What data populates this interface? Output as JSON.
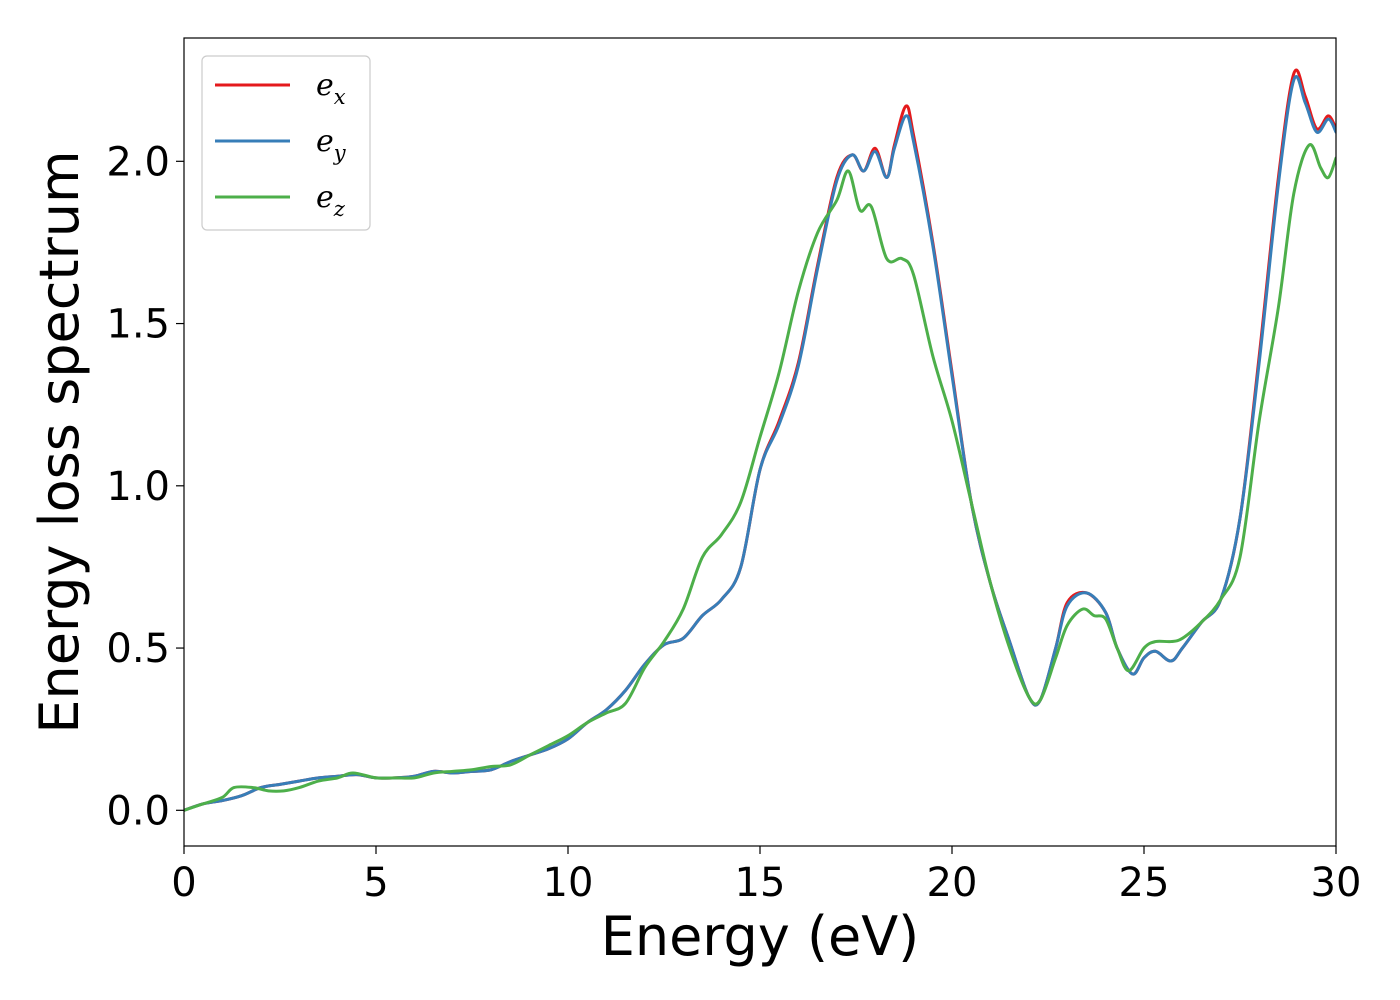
{
  "chart_data": {
    "type": "line",
    "title": "",
    "xlabel": "Energy (eV)",
    "ylabel": "Energy loss spectrum",
    "xlim": [
      0,
      30
    ],
    "ylim": [
      -0.11,
      2.38
    ],
    "xticks": [
      0,
      5,
      10,
      15,
      20,
      25,
      30
    ],
    "xtick_labels": [
      "0",
      "5",
      "10",
      "15",
      "20",
      "25",
      "30"
    ],
    "yticks": [
      0.0,
      0.5,
      1.0,
      1.5,
      2.0
    ],
    "ytick_labels": [
      "0.0",
      "0.5",
      "1.0",
      "1.5",
      "2.0"
    ],
    "grid": false,
    "legend": "top-left",
    "series": [
      {
        "name": "e_x",
        "label_base": "e",
        "label_sub": "x",
        "color": "#e41a1c",
        "x": [
          0,
          0.5,
          1.0,
          1.5,
          2.0,
          2.5,
          3.0,
          3.5,
          4.0,
          4.5,
          5.0,
          5.5,
          6.0,
          6.5,
          7.0,
          7.5,
          8.0,
          8.5,
          9.0,
          9.5,
          10.0,
          10.5,
          11.0,
          11.5,
          12.0,
          12.5,
          13.0,
          13.5,
          14.0,
          14.5,
          15.0,
          15.5,
          16.0,
          16.5,
          17.0,
          17.4,
          17.7,
          18.0,
          18.3,
          18.5,
          18.8,
          19.0,
          19.5,
          20.0,
          20.5,
          21.0,
          21.5,
          22.0,
          22.3,
          22.7,
          23.0,
          23.5,
          24.0,
          24.3,
          24.7,
          25.0,
          25.3,
          25.7,
          26.0,
          26.5,
          27.0,
          27.5,
          28.0,
          28.5,
          28.9,
          29.2,
          29.5,
          29.8,
          30.0
        ],
        "values": [
          0.0,
          0.02,
          0.03,
          0.045,
          0.07,
          0.08,
          0.09,
          0.1,
          0.105,
          0.11,
          0.1,
          0.1,
          0.105,
          0.12,
          0.115,
          0.12,
          0.125,
          0.15,
          0.17,
          0.19,
          0.22,
          0.27,
          0.31,
          0.37,
          0.45,
          0.51,
          0.53,
          0.6,
          0.65,
          0.75,
          1.05,
          1.2,
          1.38,
          1.68,
          1.95,
          2.02,
          1.97,
          2.04,
          1.95,
          2.05,
          2.17,
          2.08,
          1.75,
          1.35,
          0.95,
          0.7,
          0.52,
          0.35,
          0.34,
          0.5,
          0.64,
          0.67,
          0.61,
          0.5,
          0.42,
          0.47,
          0.49,
          0.46,
          0.5,
          0.58,
          0.65,
          0.9,
          1.4,
          1.95,
          2.27,
          2.2,
          2.1,
          2.14,
          2.1
        ]
      },
      {
        "name": "e_y",
        "label_base": "e",
        "label_sub": "y",
        "color": "#377eb8",
        "x": [
          0,
          0.5,
          1.0,
          1.5,
          2.0,
          2.5,
          3.0,
          3.5,
          4.0,
          4.5,
          5.0,
          5.5,
          6.0,
          6.5,
          7.0,
          7.5,
          8.0,
          8.5,
          9.0,
          9.5,
          10.0,
          10.5,
          11.0,
          11.5,
          12.0,
          12.5,
          13.0,
          13.5,
          14.0,
          14.5,
          15.0,
          15.5,
          16.0,
          16.5,
          17.0,
          17.4,
          17.7,
          18.0,
          18.3,
          18.5,
          18.8,
          19.0,
          19.5,
          20.0,
          20.5,
          21.0,
          21.5,
          22.0,
          22.3,
          22.7,
          23.0,
          23.5,
          24.0,
          24.3,
          24.7,
          25.0,
          25.3,
          25.7,
          26.0,
          26.5,
          27.0,
          27.5,
          28.0,
          28.5,
          28.9,
          29.2,
          29.5,
          29.8,
          30.0
        ],
        "values": [
          0.0,
          0.02,
          0.03,
          0.045,
          0.07,
          0.08,
          0.09,
          0.1,
          0.105,
          0.11,
          0.1,
          0.1,
          0.105,
          0.12,
          0.115,
          0.12,
          0.125,
          0.15,
          0.17,
          0.19,
          0.22,
          0.27,
          0.31,
          0.37,
          0.45,
          0.51,
          0.53,
          0.6,
          0.65,
          0.75,
          1.05,
          1.19,
          1.37,
          1.67,
          1.94,
          2.02,
          1.97,
          2.03,
          1.95,
          2.04,
          2.14,
          2.06,
          1.74,
          1.34,
          0.95,
          0.7,
          0.52,
          0.35,
          0.34,
          0.5,
          0.63,
          0.67,
          0.61,
          0.5,
          0.42,
          0.47,
          0.49,
          0.46,
          0.5,
          0.58,
          0.65,
          0.9,
          1.38,
          1.93,
          2.25,
          2.18,
          2.09,
          2.13,
          2.09
        ]
      },
      {
        "name": "e_z",
        "label_base": "e",
        "label_sub": "z",
        "color": "#4daf4a",
        "x": [
          0,
          0.5,
          1.0,
          1.3,
          1.8,
          2.2,
          2.6,
          3.0,
          3.5,
          4.0,
          4.4,
          5.0,
          5.5,
          6.0,
          6.5,
          7.0,
          7.5,
          8.0,
          8.5,
          9.0,
          9.5,
          10.0,
          10.5,
          11.0,
          11.5,
          12.0,
          12.5,
          13.0,
          13.5,
          14.0,
          14.5,
          15.0,
          15.5,
          16.0,
          16.5,
          17.0,
          17.3,
          17.6,
          17.9,
          18.3,
          18.7,
          19.0,
          19.5,
          20.0,
          20.5,
          21.0,
          21.5,
          22.0,
          22.3,
          22.7,
          23.0,
          23.4,
          23.7,
          24.0,
          24.3,
          24.6,
          25.0,
          25.3,
          25.7,
          26.0,
          26.5,
          27.0,
          27.5,
          28.0,
          28.5,
          28.9,
          29.3,
          29.6,
          29.8,
          30.0
        ],
        "values": [
          0.0,
          0.02,
          0.04,
          0.07,
          0.07,
          0.06,
          0.06,
          0.07,
          0.09,
          0.1,
          0.115,
          0.1,
          0.1,
          0.1,
          0.115,
          0.12,
          0.125,
          0.135,
          0.14,
          0.17,
          0.2,
          0.23,
          0.27,
          0.3,
          0.33,
          0.44,
          0.52,
          0.62,
          0.78,
          0.85,
          0.95,
          1.15,
          1.35,
          1.6,
          1.78,
          1.88,
          1.97,
          1.85,
          1.86,
          1.7,
          1.7,
          1.65,
          1.4,
          1.2,
          0.95,
          0.7,
          0.5,
          0.35,
          0.34,
          0.47,
          0.57,
          0.62,
          0.6,
          0.59,
          0.5,
          0.43,
          0.5,
          0.52,
          0.52,
          0.53,
          0.58,
          0.65,
          0.78,
          1.2,
          1.55,
          1.9,
          2.05,
          1.98,
          1.95,
          2.01
        ]
      }
    ]
  }
}
